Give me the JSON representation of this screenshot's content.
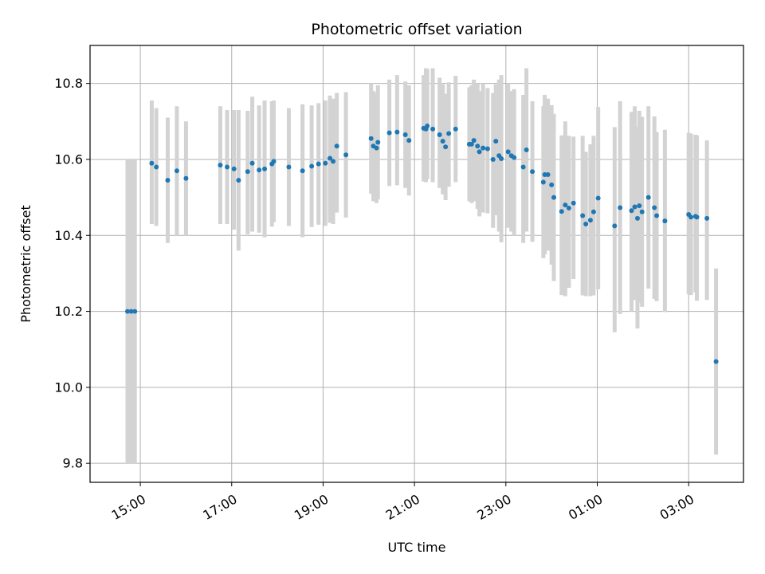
{
  "chart_data": {
    "type": "scatter",
    "title": "Photometric offset variation",
    "xlabel": "UTC time",
    "ylabel": "Photometric offset",
    "x_ticks": [
      "15:00",
      "17:00",
      "19:00",
      "21:00",
      "23:00",
      "01:00",
      "03:00"
    ],
    "y_ticks": [
      "9.8",
      "10.0",
      "10.2",
      "10.4",
      "10.6",
      "10.8"
    ],
    "xlim_hours": [
      13.9,
      28.2
    ],
    "ylim": [
      9.75,
      10.9
    ],
    "grid": true,
    "colors": {
      "marker": "#1f77b4",
      "errorbar": "#d3d3d3",
      "grid": "#b0b0b0"
    },
    "series": [
      {
        "x_hours": [
          14.72,
          14.8,
          14.88,
          15.25,
          15.35,
          15.6,
          15.8,
          16.0,
          16.75,
          16.9,
          17.05,
          17.15,
          17.35,
          17.45,
          17.6,
          17.72,
          17.88,
          17.92,
          18.25,
          18.55,
          18.75,
          18.9,
          19.05,
          19.15,
          19.22,
          19.3,
          19.5,
          20.05,
          20.1,
          20.17,
          20.2,
          20.45,
          20.62,
          20.8,
          20.88,
          21.2,
          21.25,
          21.28,
          21.4,
          21.55,
          21.62,
          21.68,
          21.75,
          21.9,
          22.2,
          22.25,
          22.3,
          22.38,
          22.42,
          22.5,
          22.6,
          22.72,
          22.78,
          22.85,
          22.9,
          23.05,
          23.12,
          23.18,
          23.38,
          23.45,
          23.58,
          23.82,
          23.85,
          23.92,
          24.0,
          24.05,
          24.22,
          24.3,
          24.38,
          24.48,
          24.68,
          24.75,
          24.85,
          24.92,
          25.02,
          25.38,
          25.5,
          25.75,
          25.82,
          25.88,
          25.92,
          25.98,
          26.12,
          26.25,
          26.3,
          26.48,
          27.0,
          27.05,
          27.15,
          27.18,
          27.4,
          27.6
        ],
        "y": [
          10.2,
          10.2,
          10.2,
          10.59,
          10.58,
          10.545,
          10.57,
          10.55,
          10.585,
          10.58,
          10.575,
          10.545,
          10.568,
          10.59,
          10.572,
          10.575,
          10.588,
          10.595,
          10.58,
          10.57,
          10.582,
          10.588,
          10.59,
          10.603,
          10.595,
          10.635,
          10.612,
          10.655,
          10.635,
          10.63,
          10.645,
          10.67,
          10.672,
          10.665,
          10.65,
          10.682,
          10.68,
          10.688,
          10.68,
          10.665,
          10.648,
          10.633,
          10.668,
          10.68,
          10.64,
          10.64,
          10.65,
          10.635,
          10.62,
          10.63,
          10.628,
          10.6,
          10.648,
          10.61,
          10.602,
          10.62,
          10.61,
          10.605,
          10.58,
          10.625,
          10.568,
          10.54,
          10.56,
          10.56,
          10.533,
          10.5,
          10.463,
          10.48,
          10.472,
          10.485,
          10.452,
          10.43,
          10.44,
          10.462,
          10.498,
          10.425,
          10.473,
          10.465,
          10.475,
          10.445,
          10.478,
          10.462,
          10.5,
          10.473,
          10.452,
          10.438,
          10.455,
          10.448,
          10.45,
          10.448,
          10.445,
          10.068
        ],
        "y_err_low": [
          0.4,
          0.4,
          0.4,
          0.16,
          0.155,
          0.165,
          0.17,
          0.15,
          0.155,
          0.15,
          0.16,
          0.185,
          0.165,
          0.18,
          0.165,
          0.18,
          0.165,
          0.16,
          0.155,
          0.175,
          0.16,
          0.16,
          0.165,
          0.17,
          0.165,
          0.175,
          0.165,
          0.145,
          0.145,
          0.145,
          0.15,
          0.14,
          0.14,
          0.14,
          0.145,
          0.14,
          0.14,
          0.14,
          0.14,
          0.14,
          0.14,
          0.14,
          0.14,
          0.14,
          0.15,
          0.155,
          0.16,
          0.165,
          0.17,
          0.17,
          0.17,
          0.18,
          0.195,
          0.2,
          0.22,
          0.2,
          0.2,
          0.205,
          0.2,
          0.215,
          0.185,
          0.2,
          0.21,
          0.2,
          0.21,
          0.22,
          0.22,
          0.24,
          0.21,
          0.2,
          0.21,
          0.19,
          0.2,
          0.22,
          0.24,
          0.28,
          0.28,
          0.265,
          0.245,
          0.29,
          0.255,
          0.25,
          0.24,
          0.24,
          0.225,
          0.24,
          0.21,
          0.205,
          0.2,
          0.22,
          0.215,
          0.245
        ],
        "y_err_high": [
          0.4,
          0.4,
          0.4,
          0.165,
          0.155,
          0.165,
          0.17,
          0.15,
          0.155,
          0.15,
          0.155,
          0.185,
          0.16,
          0.175,
          0.17,
          0.18,
          0.165,
          0.16,
          0.155,
          0.175,
          0.16,
          0.16,
          0.165,
          0.165,
          0.165,
          0.14,
          0.165,
          0.145,
          0.145,
          0.145,
          0.15,
          0.14,
          0.15,
          0.14,
          0.145,
          0.14,
          0.16,
          0.15,
          0.16,
          0.15,
          0.15,
          0.14,
          0.135,
          0.14,
          0.15,
          0.155,
          0.16,
          0.165,
          0.16,
          0.17,
          0.16,
          0.175,
          0.15,
          0.2,
          0.22,
          0.18,
          0.17,
          0.18,
          0.19,
          0.215,
          0.185,
          0.2,
          0.21,
          0.2,
          0.21,
          0.22,
          0.2,
          0.22,
          0.19,
          0.175,
          0.21,
          0.19,
          0.2,
          0.2,
          0.24,
          0.26,
          0.28,
          0.26,
          0.265,
          0.24,
          0.25,
          0.25,
          0.24,
          0.24,
          0.22,
          0.24,
          0.215,
          0.22,
          0.215,
          0.215,
          0.205,
          0.245
        ]
      }
    ]
  }
}
